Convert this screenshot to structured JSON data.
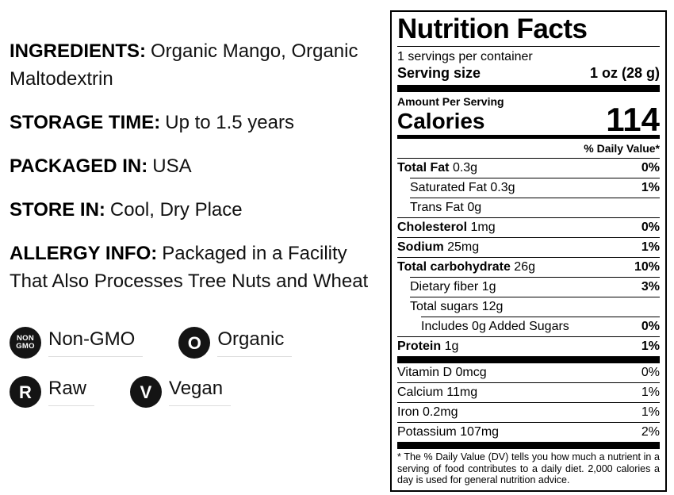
{
  "colors": {
    "text": "#111111",
    "label_border": "#000000",
    "badge_fill": "#141414",
    "badge_underline": "#dddddd"
  },
  "left_panel": {
    "fields": [
      {
        "label": "INGREDIENTS:",
        "value": "Organic Mango, Organic Maltodextrin"
      },
      {
        "label": "STORAGE TIME:",
        "value": "Up to 1.5 years"
      },
      {
        "label": "PACKAGED IN:",
        "value": "USA"
      },
      {
        "label": "STORE IN:",
        "value": "Cool, Dry Place"
      },
      {
        "label": "ALLERGY INFO:",
        "value": "Packaged in a Facility That Also Processes Tree Nuts and Wheat"
      }
    ],
    "badges": [
      {
        "icon": "non-gmo-icon",
        "icon_text": "NON\nGMO",
        "label": "Non-GMO"
      },
      {
        "icon": "organic-icon",
        "icon_text": "O",
        "label": "Organic"
      },
      {
        "icon": "raw-icon",
        "icon_text": "R",
        "label": "Raw"
      },
      {
        "icon": "vegan-icon",
        "icon_text": "V",
        "label": "Vegan"
      }
    ]
  },
  "nutrition_label": {
    "title": "Nutrition Facts",
    "servings_per_container": "1 servings per container",
    "serving_size_label": "Serving size",
    "serving_size_value": "1 oz (28 g)",
    "amount_per_serving": "Amount Per Serving",
    "calories_label": "Calories",
    "calories_value": "114",
    "daily_value_header": "% Daily Value*",
    "rows": [
      {
        "name": "Total Fat",
        "amount": "0.3g",
        "dv": "0%"
      },
      {
        "name": "Saturated Fat",
        "amount": "0.3g",
        "dv": "1%"
      },
      {
        "name": "Trans Fat",
        "amount": "0g",
        "dv": ""
      },
      {
        "name": "Cholesterol",
        "amount": "1mg",
        "dv": "0%"
      },
      {
        "name": "Sodium",
        "amount": "25mg",
        "dv": "1%"
      },
      {
        "name": "Total carbohydrate",
        "amount": "26g",
        "dv": "10%"
      },
      {
        "name": "Dietary fiber",
        "amount": "1g",
        "dv": "3%"
      },
      {
        "name": "Total sugars",
        "amount": "12g",
        "dv": ""
      },
      {
        "name": "Includes 0g Added Sugars",
        "amount": "",
        "dv": "0%"
      },
      {
        "name": "Protein",
        "amount": "1g",
        "dv": "1%"
      }
    ],
    "micros": [
      {
        "name": "Vitamin D",
        "amount": "0mcg",
        "dv": "0%"
      },
      {
        "name": "Calcium",
        "amount": "11mg",
        "dv": "1%"
      },
      {
        "name": "Iron",
        "amount": "0.2mg",
        "dv": "1%"
      },
      {
        "name": "Potassium",
        "amount": "107mg",
        "dv": "2%"
      }
    ],
    "footnote": "* The % Daily Value (DV) tells you how much a nutrient in a serving of food contributes to a daily diet. 2,000 calories a day is used for general nutrition advice."
  }
}
